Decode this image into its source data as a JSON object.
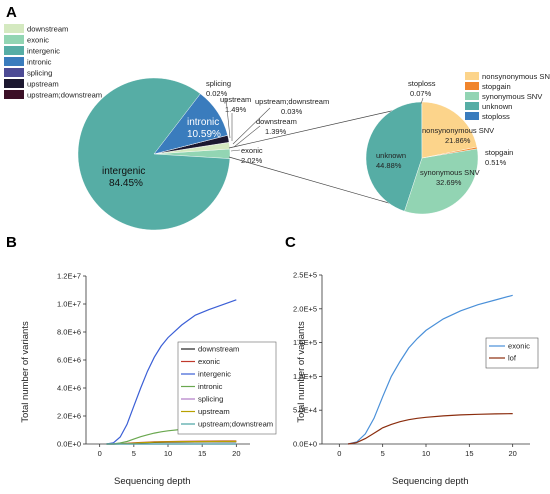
{
  "panel_labels": {
    "a": "A",
    "b": "B",
    "c": "C"
  },
  "colors": {
    "downstream": "#d4e9c0",
    "exonic": "#92d5b3",
    "intergenic": "#56ada5",
    "intronic": "#3a7cbd",
    "splicing": "#4d4b95",
    "upstream": "#1c1830",
    "upstream_downstream": "#3b0f26",
    "nonsynonymous": "#fcd48b",
    "stopgain": "#f0852d",
    "synonymous": "#92d4b3",
    "unknown": "#56ada5",
    "stoploss": "#3a7cbd"
  },
  "chart_data": [
    {
      "type": "pie",
      "panel": "A-left",
      "legend": [
        "downstream",
        "exonic",
        "intergenic",
        "intronic",
        "splicing",
        "upstream",
        "upstream;downstream"
      ],
      "legend_placement": "top-left",
      "slices": [
        {
          "name": "intergenic",
          "label": "intergenic",
          "pct": "84.45%",
          "value": 84.45
        },
        {
          "name": "intronic",
          "label": "intronic",
          "pct": "10.59%",
          "value": 10.59
        },
        {
          "name": "splicing",
          "label": "splicing",
          "pct": "0.02%",
          "value": 0.02
        },
        {
          "name": "upstream",
          "label": "upstream",
          "pct": "1.49%",
          "value": 1.49
        },
        {
          "name": "upstream_downstream",
          "label": "upstream;downstream",
          "pct": "0.03%",
          "value": 0.03
        },
        {
          "name": "downstream",
          "label": "downstream",
          "pct": "1.39%",
          "value": 1.39
        },
        {
          "name": "exonic",
          "label": "exonic",
          "pct": "2.02%",
          "value": 2.02
        }
      ]
    },
    {
      "type": "pie",
      "panel": "A-right",
      "legend": [
        "nonsynonymous SNV",
        "stopgain",
        "synonymous SNV",
        "unknown",
        "stoploss"
      ],
      "legend_placement": "top-right",
      "slices": [
        {
          "name": "nonsynonymous",
          "label": "nonsynonymous SNV",
          "pct": "21.86%",
          "value": 21.86
        },
        {
          "name": "stopgain",
          "label": "stopgain",
          "pct": "0.51%",
          "value": 0.51
        },
        {
          "name": "synonymous",
          "label": "synonymous SNV",
          "pct": "32.69%",
          "value": 32.69
        },
        {
          "name": "unknown",
          "label": "unknown",
          "pct": "44.88%",
          "value": 44.88
        },
        {
          "name": "stoploss",
          "label": "stoploss",
          "pct": "0.07%",
          "value": 0.07
        }
      ]
    },
    {
      "type": "line",
      "panel": "B",
      "xlabel": "Sequencing depth",
      "ylabel": "Total number of variants",
      "xlim": [
        -2,
        22
      ],
      "ylim": [
        0,
        12000000
      ],
      "xticks": [
        0,
        5,
        10,
        15,
        20
      ],
      "yticks": [
        {
          "v": 0,
          "label": "0.0E+0"
        },
        {
          "v": 2000000,
          "label": "2.0E+6"
        },
        {
          "v": 4000000,
          "label": "4.0E+6"
        },
        {
          "v": 6000000,
          "label": "6.0E+6"
        },
        {
          "v": 8000000,
          "label": "8.0E+6"
        },
        {
          "v": 10000000,
          "label": "1.0E+7"
        },
        {
          "v": 12000000,
          "label": "1.2E+7"
        }
      ],
      "legend_placement": "center-right",
      "x": [
        1,
        2,
        3,
        4,
        5,
        6,
        7,
        8,
        9,
        10,
        12,
        14,
        16,
        18,
        20
      ],
      "series": [
        {
          "name": "downstream",
          "color": "#222222",
          "values": [
            0,
            0,
            10000,
            30000,
            55000,
            80000,
            100000,
            115000,
            125000,
            135000,
            145000,
            150000,
            155000,
            158000,
            160000
          ]
        },
        {
          "name": "exonic",
          "color": "#c0392b",
          "values": [
            0,
            0,
            15000,
            40000,
            75000,
            105000,
            130000,
            150000,
            165000,
            175000,
            190000,
            200000,
            208000,
            212000,
            215000
          ]
        },
        {
          "name": "intergenic",
          "color": "#3b5fd6",
          "values": [
            0,
            80000,
            500000,
            1400000,
            2700000,
            4000000,
            5200000,
            6200000,
            7000000,
            7600000,
            8500000,
            9200000,
            9600000,
            9950000,
            10300000
          ]
        },
        {
          "name": "intronic",
          "color": "#6aa84f",
          "values": [
            0,
            10000,
            70000,
            180000,
            350000,
            520000,
            660000,
            780000,
            870000,
            940000,
            1040000,
            1110000,
            1160000,
            1200000,
            1230000
          ]
        },
        {
          "name": "splicing",
          "color": "#b07cc6",
          "values": [
            0,
            0,
            0,
            0,
            0,
            0,
            0,
            0,
            0,
            0,
            0,
            0,
            0,
            0,
            0
          ]
        },
        {
          "name": "upstream",
          "color": "#b8a000",
          "values": [
            0,
            0,
            10000,
            30000,
            60000,
            90000,
            110000,
            130000,
            145000,
            155000,
            168000,
            175000,
            180000,
            184000,
            187000
          ]
        },
        {
          "name": "upstream;downstream",
          "color": "#4aa3a3",
          "values": [
            0,
            0,
            0,
            0,
            0,
            0,
            0,
            0,
            0,
            0,
            0,
            0,
            0,
            0,
            0
          ]
        }
      ]
    },
    {
      "type": "line",
      "panel": "C",
      "xlabel": "Sequencing depth",
      "ylabel": "Total number of variants",
      "xlim": [
        -2,
        22
      ],
      "ylim": [
        0,
        250000
      ],
      "xticks": [
        0,
        5,
        10,
        15,
        20
      ],
      "yticks": [
        {
          "v": 0,
          "label": "0.0E+0"
        },
        {
          "v": 50000,
          "label": "5.0E+4"
        },
        {
          "v": 100000,
          "label": "1.0E+5"
        },
        {
          "v": 150000,
          "label": "1.5E+5"
        },
        {
          "v": 200000,
          "label": "2.0E+5"
        },
        {
          "v": 250000,
          "label": "2.5E+5"
        }
      ],
      "legend_placement": "center-right",
      "x": [
        1,
        2,
        3,
        4,
        5,
        6,
        7,
        8,
        9,
        10,
        12,
        14,
        16,
        18,
        20
      ],
      "series": [
        {
          "name": "exonic",
          "color": "#4a90d9",
          "values": [
            0,
            3000,
            15000,
            38000,
            70000,
            100000,
            122000,
            142000,
            156000,
            168000,
            185000,
            197000,
            206000,
            213000,
            220000
          ]
        },
        {
          "name": "lof",
          "color": "#8b2d0e",
          "values": [
            0,
            2000,
            8000,
            16000,
            24000,
            29000,
            33000,
            36000,
            38000,
            39500,
            41500,
            43000,
            44000,
            44500,
            45000
          ]
        }
      ]
    }
  ]
}
